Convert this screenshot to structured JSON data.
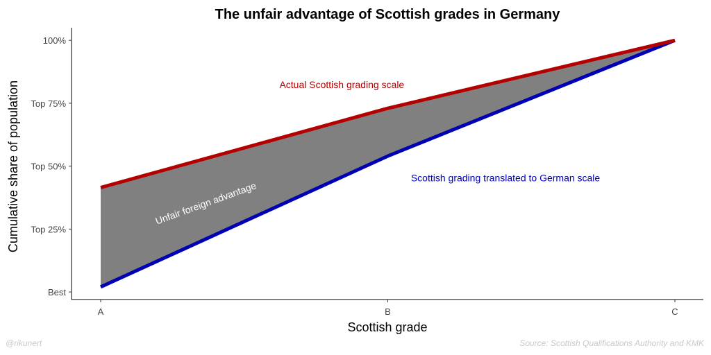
{
  "chart_data": {
    "type": "area",
    "title": "The unfair advantage of Scottish grades in Germany",
    "xlabel": "Scottish grade",
    "ylabel": "Cumulative share of population",
    "categories": [
      "A",
      "B",
      "C"
    ],
    "y_ticks": [
      {
        "value": 0,
        "label": "Best"
      },
      {
        "value": 25,
        "label": "Top 25%"
      },
      {
        "value": 50,
        "label": "Top 50%"
      },
      {
        "value": 75,
        "label": "Top 75%"
      },
      {
        "value": 100,
        "label": "100%"
      }
    ],
    "ylim": [
      -3,
      105
    ],
    "series": [
      {
        "key": "actual",
        "values": [
          41.5,
          73,
          100
        ],
        "color": "#b40000"
      },
      {
        "key": "translated",
        "values": [
          2,
          54,
          100
        ],
        "color": "#0000b4"
      }
    ],
    "fill_color": "#808080",
    "annotations": {
      "actual": {
        "text": "Actual Scottish grading scale",
        "color": "#b40000",
        "x": 0.84,
        "y": 81
      },
      "translated": {
        "text": "Scottish grading translated to German scale",
        "color": "#0000b4",
        "x": 1.41,
        "y": 44
      },
      "advantage": {
        "text": "Unfair foreign advantage",
        "color": "#ffffff",
        "x": 0.37,
        "y": 34
      }
    },
    "grid": false
  },
  "footer": {
    "left": "@rikunert",
    "right": "Source: Scottish Qualifications Authority and KMK"
  }
}
